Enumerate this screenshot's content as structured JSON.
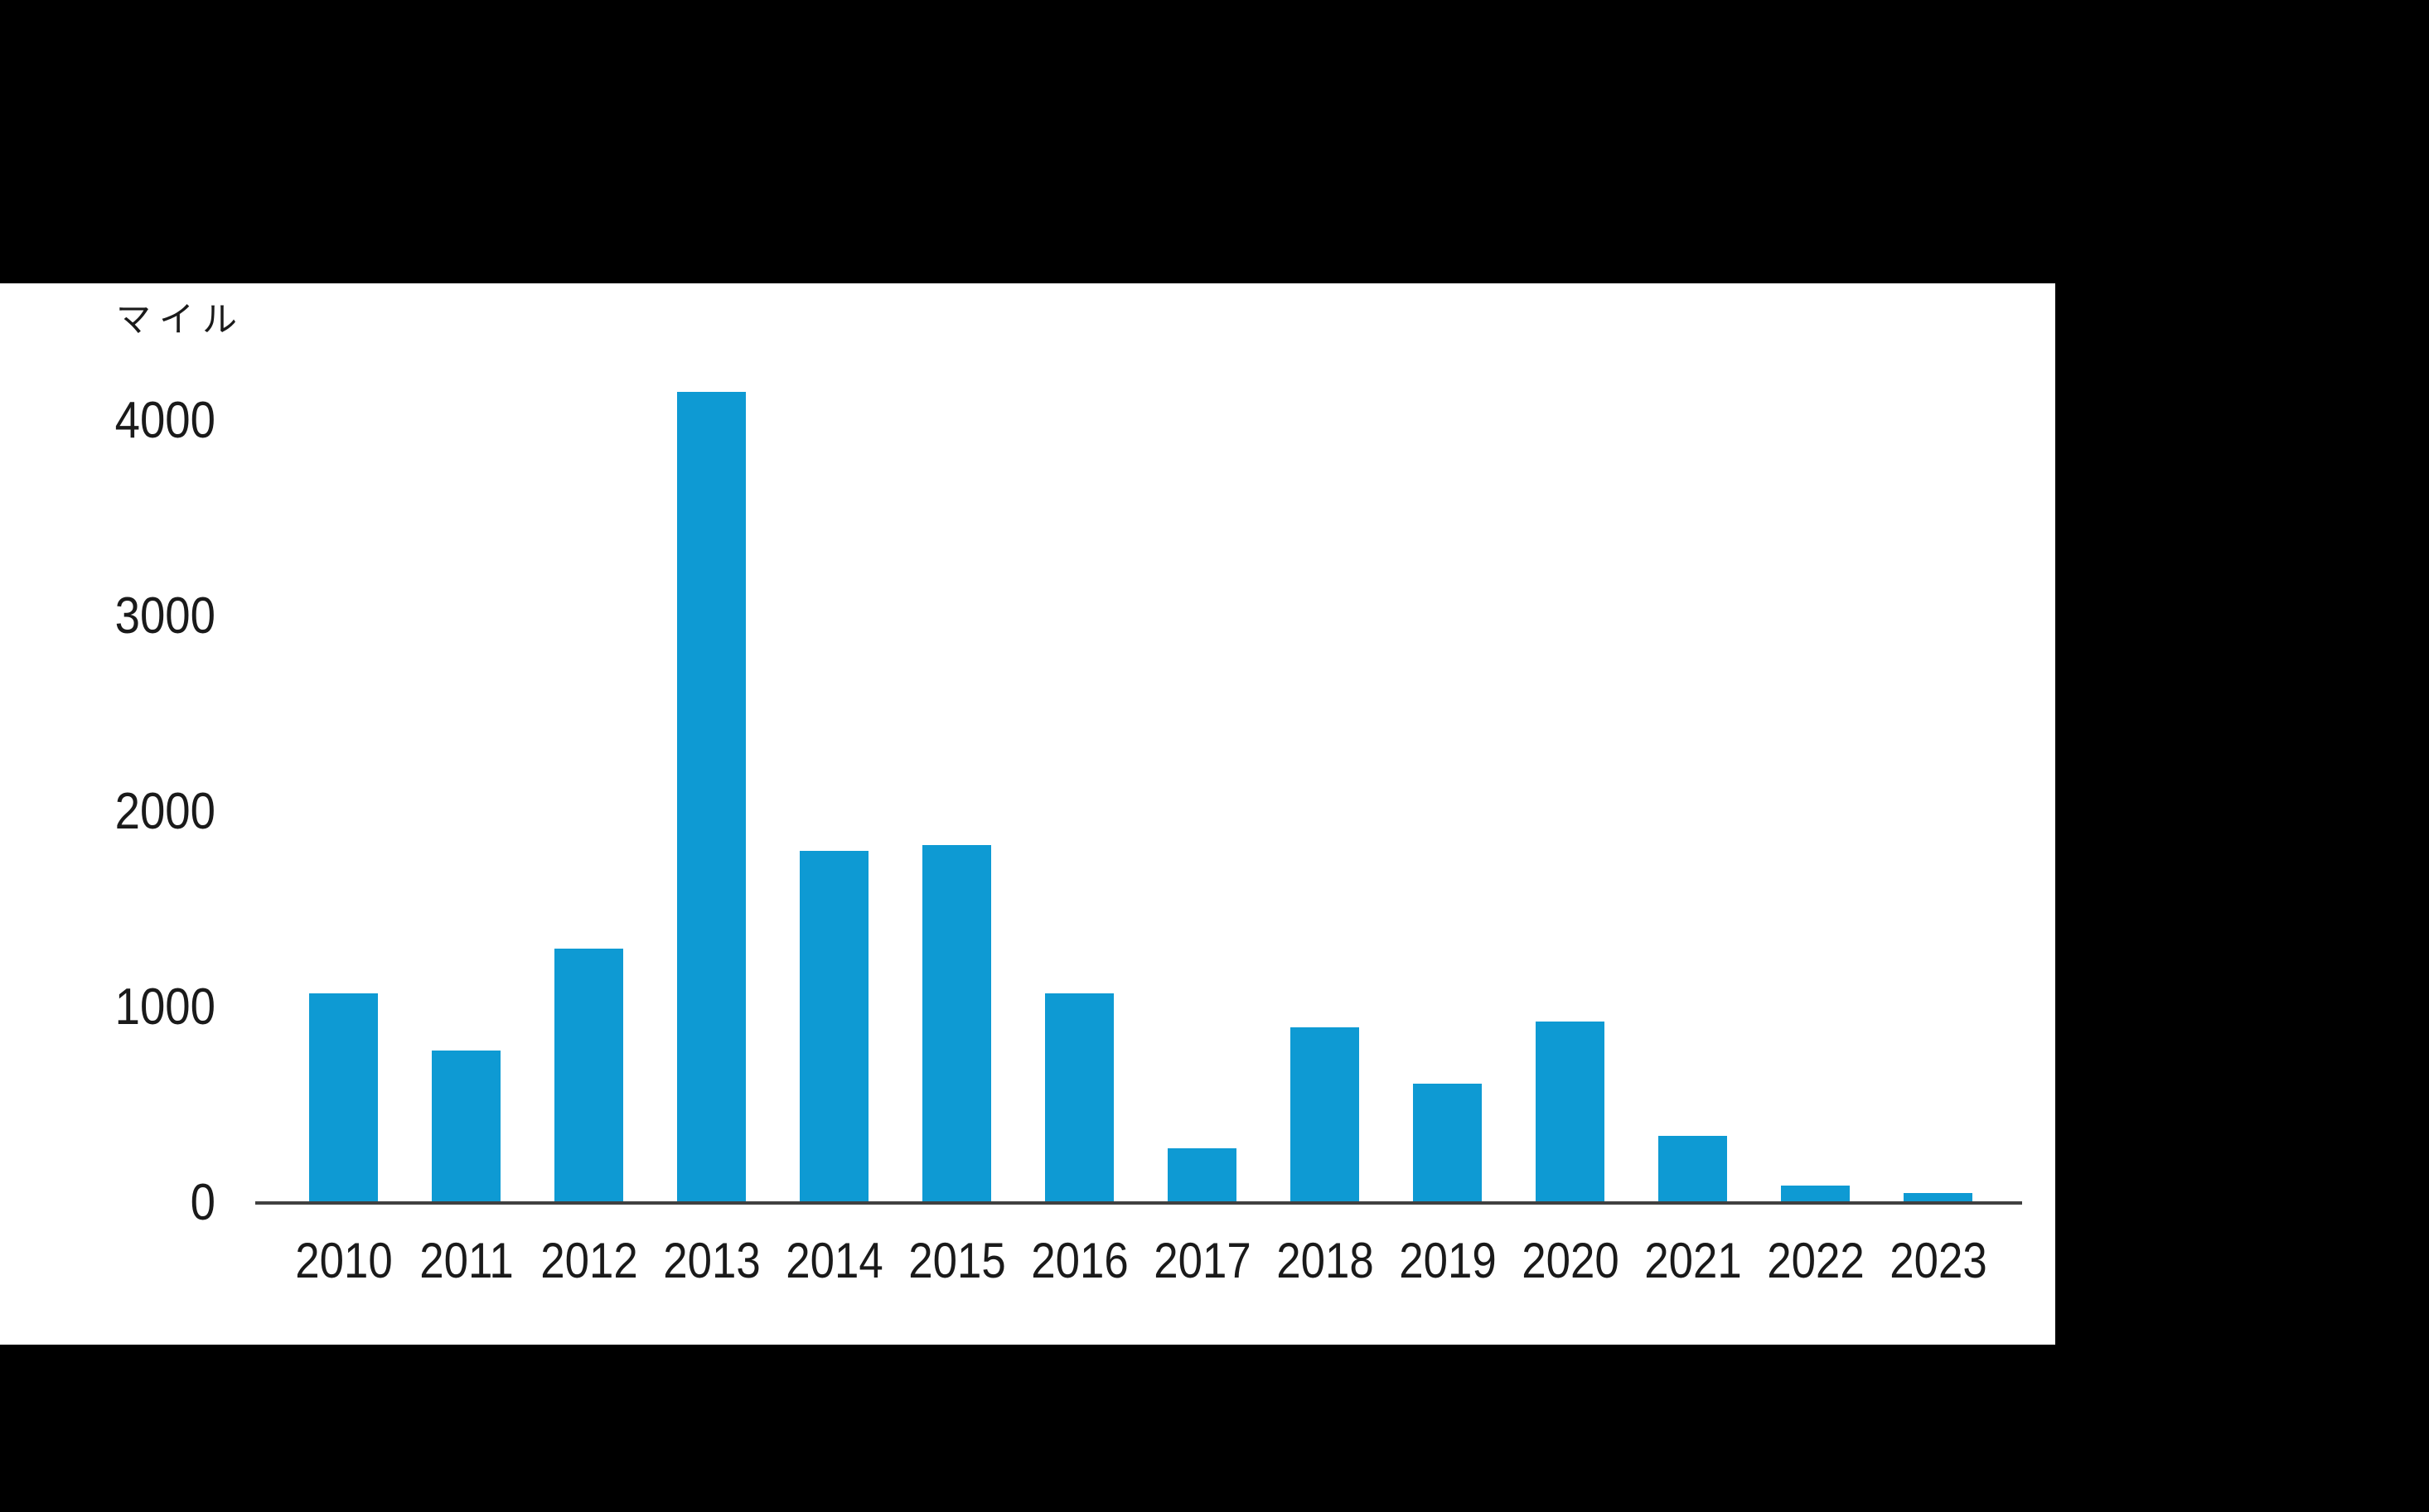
{
  "chart_data": {
    "type": "bar",
    "title": "",
    "unit_label": "マイル",
    "categories": [
      "2010",
      "2011",
      "2012",
      "2013",
      "2014",
      "2015",
      "2016",
      "2017",
      "2018",
      "2019",
      "2020",
      "2021",
      "2022",
      "2023"
    ],
    "values": [
      1070,
      780,
      1300,
      4150,
      1800,
      1830,
      1070,
      280,
      900,
      610,
      930,
      345,
      90,
      50
    ],
    "xlabel": "",
    "ylabel": "マイル",
    "ylim": [
      0,
      4400
    ],
    "y_ticks": [
      0,
      1000,
      2000,
      3000,
      4000
    ],
    "grid": false,
    "legend": "none",
    "colors": {
      "bar": "#0e9ad3",
      "axis": "#404040",
      "text": "#1a1a1a",
      "panel_bg": "#ffffff",
      "canvas_bg": "#000000"
    }
  }
}
